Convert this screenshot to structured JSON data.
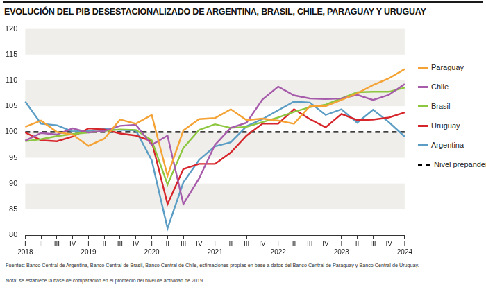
{
  "chart_data": {
    "type": "line",
    "title": "EVOLUCIÓN DEL PIB DESESTACIONALIZADO DE ARGENTINA, BRASIL, CHILE, PARAGUAY Y URUGUAY",
    "source": "Fuentes: Banco Central de Argentina, Banco Central de Brasil, Banco Central de Chile, estimaciones propias en base a datos del Banco Central de Paraguay y Banco Central de Uruguay.",
    "note": "Nota: se establece la base de comparación en el promedio del nivel de actividad de 2019.",
    "categories": [
      [
        "I",
        "2018"
      ],
      "II",
      "III",
      "IV",
      [
        "I",
        "2019"
      ],
      "II",
      "III",
      "IV",
      [
        "I",
        "2020"
      ],
      "II",
      "III",
      "IV",
      [
        "I",
        "2021"
      ],
      "II",
      "III",
      "IV",
      [
        "I",
        "2022"
      ],
      "II",
      "III",
      "IV",
      [
        "I",
        "2023"
      ],
      "II",
      "III",
      "IV",
      [
        "I",
        "2024"
      ]
    ],
    "series": [
      {
        "name": "Paraguay",
        "color": "#f4a233",
        "values": [
          101,
          102.2,
          100,
          99.5,
          97.3,
          98.7,
          102.4,
          101.6,
          103.3,
          91.5,
          100.3,
          102.5,
          102.7,
          104.4,
          102.3,
          102.6,
          102.2,
          101.6,
          105,
          105,
          106.2,
          107.5,
          109.1,
          110.4,
          112.2
        ]
      },
      {
        "name": "Chile",
        "color": "#a65bab",
        "values": [
          98.3,
          99.8,
          99.5,
          100.7,
          99.9,
          100.2,
          101.2,
          101.4,
          97.5,
          99.3,
          86,
          91,
          97.5,
          100.8,
          101.8,
          106.3,
          108.8,
          107.1,
          106.5,
          106.4,
          106.5,
          107.2,
          106.2,
          107.2,
          109.3
        ]
      },
      {
        "name": "Brasil",
        "color": "#8dc63f",
        "values": [
          98.2,
          98.6,
          99.2,
          99.6,
          99.9,
          100.2,
          100.5,
          100.4,
          98.4,
          89.8,
          96.9,
          100.4,
          101.5,
          100.8,
          101,
          101.9,
          102.8,
          103.9,
          104.8,
          105.3,
          106.5,
          107.7,
          107.8,
          107.8,
          108.6
        ]
      },
      {
        "name": "Uruguay",
        "color": "#d7262b",
        "values": [
          99.9,
          98.4,
          98.2,
          99.1,
          100.7,
          100.5,
          99.7,
          99.3,
          98.2,
          86,
          92.8,
          93.8,
          93.8,
          96,
          99.3,
          101.6,
          101.6,
          104.4,
          102.5,
          100.9,
          103.5,
          102.3,
          102.4,
          102.8,
          103.8
        ]
      },
      {
        "name": "Argentina",
        "color": "#5b9dc4",
        "values": [
          105.9,
          101.6,
          101.3,
          100.1,
          100.2,
          100.6,
          100.4,
          100.3,
          94.5,
          81.3,
          90.2,
          94.6,
          97.2,
          98,
          101.1,
          102.5,
          104.2,
          105.9,
          105.7,
          103.3,
          104.4,
          101.8,
          104.3,
          101.9,
          99.1
        ]
      },
      {
        "name": "Nivel prepandemia",
        "color": "#000000",
        "line_style": "dashed",
        "values": [
          100,
          100,
          100,
          100,
          100,
          100,
          100,
          100,
          100,
          100,
          100,
          100,
          100,
          100,
          100,
          100,
          100,
          100,
          100,
          100,
          100,
          100,
          100,
          100,
          100
        ]
      }
    ],
    "ylim": [
      80,
      120
    ],
    "yticks": [
      80,
      85,
      90,
      95,
      100,
      105,
      110,
      115,
      120
    ],
    "grid": true,
    "legend": "right"
  }
}
